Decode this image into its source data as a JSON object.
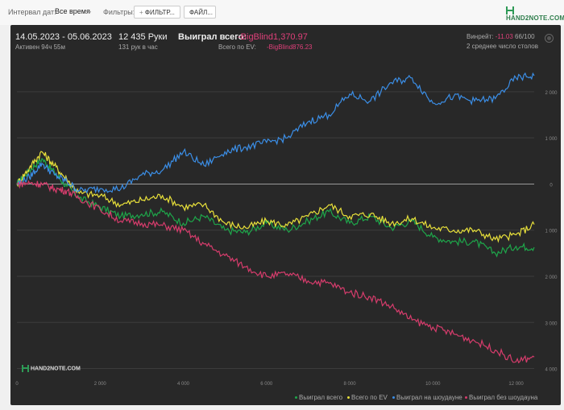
{
  "filters": {
    "date_interval_label": "Интервал дат:",
    "date_interval_value": "Все время",
    "filters_label": "Фильтры:",
    "filter_button": "ФИЛЬТР...",
    "file_button": "ФАЙЛ...",
    "logo_text": "HAND2NOTE.COM"
  },
  "summary": {
    "date_range": "14.05.2023 - 05.06.2023",
    "active": "Активен 94ч 55м",
    "hands": "12 435 Руки",
    "hands_per_hour": "131 рук в час",
    "won_total_label": "Выиграл всего:",
    "won_total_value": "-BigBlind1,370.97",
    "ev_total_label": "Всего по EV:",
    "ev_total_value": "-BigBlind876.23",
    "winrate_label": "Винрейт:",
    "winrate_value": "-11.03",
    "winrate_suffix": "66/100",
    "tables_avg": "2 среднее число столов"
  },
  "chart_logo": "HAND2NOTE.COM",
  "colors": {
    "won": "#1ea64a",
    "ev": "#e8e03a",
    "showdown": "#3b8ee6",
    "non_showdown": "#d63c6c",
    "panel_bg": "#282828"
  },
  "chart_data": {
    "type": "line",
    "xlim": [
      0,
      12435
    ],
    "ylim": [
      -4200,
      2400
    ],
    "x_ticks": [
      0,
      2000,
      4000,
      6000,
      8000,
      10000,
      12000
    ],
    "x_tick_labels": [
      "0",
      "2 000",
      "4 000",
      "6 000",
      "8 000",
      "10 000",
      "12 000"
    ],
    "y_ticks": [
      2000,
      1000,
      0,
      -1000,
      -2000,
      -3000,
      -4000
    ],
    "y_tick_labels": [
      "2 000",
      "1 000",
      "0",
      "1 000",
      "2 000",
      "3 000",
      "4 000"
    ],
    "grid": true,
    "legend_position": "bottom-right",
    "series": [
      {
        "name": "Выиграл всего",
        "color": "#1ea64a",
        "x": [
          0,
          300,
          600,
          900,
          1200,
          1500,
          2000,
          2500,
          3000,
          3500,
          4000,
          4500,
          5000,
          5500,
          6000,
          6500,
          7000,
          7500,
          8000,
          8500,
          9000,
          9500,
          10000,
          10500,
          11000,
          11500,
          12000,
          12435
        ],
        "y": [
          0,
          300,
          550,
          250,
          -50,
          -300,
          -500,
          -700,
          -650,
          -600,
          -850,
          -700,
          -1000,
          -1050,
          -850,
          -1000,
          -800,
          -600,
          -850,
          -700,
          -950,
          -800,
          -1150,
          -1250,
          -1250,
          -1500,
          -1350,
          -1370.97
        ]
      },
      {
        "name": "Всего по EV",
        "color": "#e8e03a",
        "x": [
          0,
          300,
          600,
          900,
          1200,
          1500,
          2000,
          2500,
          3000,
          3500,
          4000,
          4500,
          5000,
          5500,
          6000,
          6500,
          7000,
          7500,
          8000,
          8500,
          9000,
          9500,
          10000,
          10500,
          11000,
          11500,
          12000,
          12435
        ],
        "y": [
          0,
          350,
          700,
          400,
          100,
          -200,
          -250,
          -450,
          -350,
          -250,
          -500,
          -450,
          -850,
          -950,
          -800,
          -900,
          -700,
          -450,
          -700,
          -650,
          -850,
          -750,
          -950,
          -1000,
          -1000,
          -1200,
          -1100,
          -876.23
        ]
      },
      {
        "name": "Выиграл на шоудауне",
        "color": "#3b8ee6",
        "x": [
          0,
          300,
          600,
          900,
          1200,
          1500,
          2000,
          2500,
          3000,
          3500,
          4000,
          4500,
          5000,
          5500,
          6000,
          6500,
          7000,
          7500,
          8000,
          8500,
          9000,
          9500,
          10000,
          10500,
          11000,
          11500,
          12000,
          12435
        ],
        "y": [
          0,
          150,
          450,
          200,
          50,
          -150,
          -100,
          -100,
          200,
          300,
          700,
          400,
          700,
          800,
          900,
          1000,
          1350,
          1500,
          1950,
          1800,
          2200,
          2300,
          1750,
          1900,
          1800,
          1850,
          2300,
          2350
        ]
      },
      {
        "name": "Выиграл без шоудауна",
        "color": "#d63c6c",
        "x": [
          0,
          300,
          600,
          900,
          1200,
          1500,
          2000,
          2500,
          3000,
          3500,
          4000,
          4500,
          5000,
          5500,
          6000,
          6500,
          7000,
          7500,
          8000,
          8500,
          9000,
          9500,
          10000,
          10500,
          11000,
          11500,
          12000,
          12435
        ],
        "y": [
          0,
          20,
          0,
          -100,
          -150,
          -300,
          -550,
          -800,
          -850,
          -900,
          -1000,
          -1300,
          -1550,
          -1800,
          -2000,
          -1950,
          -2100,
          -2150,
          -2350,
          -2450,
          -2650,
          -2950,
          -3100,
          -3250,
          -3400,
          -3600,
          -3850,
          -3750
        ]
      }
    ]
  }
}
